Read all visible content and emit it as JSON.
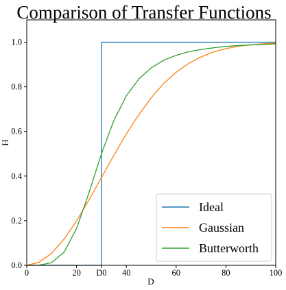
{
  "chart_data": {
    "type": "line",
    "title": "Comparison of Transfer Functions",
    "xlabel": "D",
    "ylabel": "H",
    "xlim": [
      0,
      100
    ],
    "ylim": [
      0,
      1.1
    ],
    "grid": false,
    "legend_placement": "lower-right",
    "x_ticks": [
      0,
      20,
      40,
      60,
      80,
      100
    ],
    "x_tick_labels": [
      "0",
      "20",
      "40",
      "60",
      "80",
      "100"
    ],
    "x_special_tick": {
      "value": 30,
      "label": "D0"
    },
    "y_ticks": [
      0.0,
      0.2,
      0.4,
      0.6,
      0.8,
      1.0
    ],
    "y_tick_labels": [
      "0.0",
      "0.2",
      "0.4",
      "0.6",
      "0.8",
      "1.0"
    ],
    "series": [
      {
        "name": "Ideal",
        "color": "#1f77b4",
        "x": [
          0,
          30,
          30,
          100
        ],
        "y": [
          0,
          0,
          1,
          1
        ]
      },
      {
        "name": "Gaussian",
        "color": "#ff7f0e",
        "x": [
          0,
          5,
          10,
          15,
          20,
          25,
          30,
          35,
          40,
          45,
          50,
          55,
          60,
          65,
          70,
          75,
          80,
          85,
          90,
          95,
          100
        ],
        "y": [
          0,
          0.014,
          0.054,
          0.118,
          0.199,
          0.293,
          0.393,
          0.493,
          0.589,
          0.675,
          0.751,
          0.815,
          0.865,
          0.905,
          0.934,
          0.956,
          0.971,
          0.982,
          0.988,
          0.993,
          0.996
        ]
      },
      {
        "name": "Butterworth",
        "color": "#2ca02c",
        "x": [
          0,
          5,
          10,
          15,
          20,
          25,
          30,
          35,
          40,
          45,
          50,
          55,
          60,
          65,
          70,
          75,
          80,
          85,
          90,
          95,
          100
        ],
        "y": [
          0,
          0.0008,
          0.012,
          0.059,
          0.165,
          0.325,
          0.5,
          0.649,
          0.76,
          0.835,
          0.885,
          0.919,
          0.941,
          0.957,
          0.967,
          0.975,
          0.981,
          0.985,
          0.988,
          0.99,
          0.992
        ]
      }
    ]
  }
}
